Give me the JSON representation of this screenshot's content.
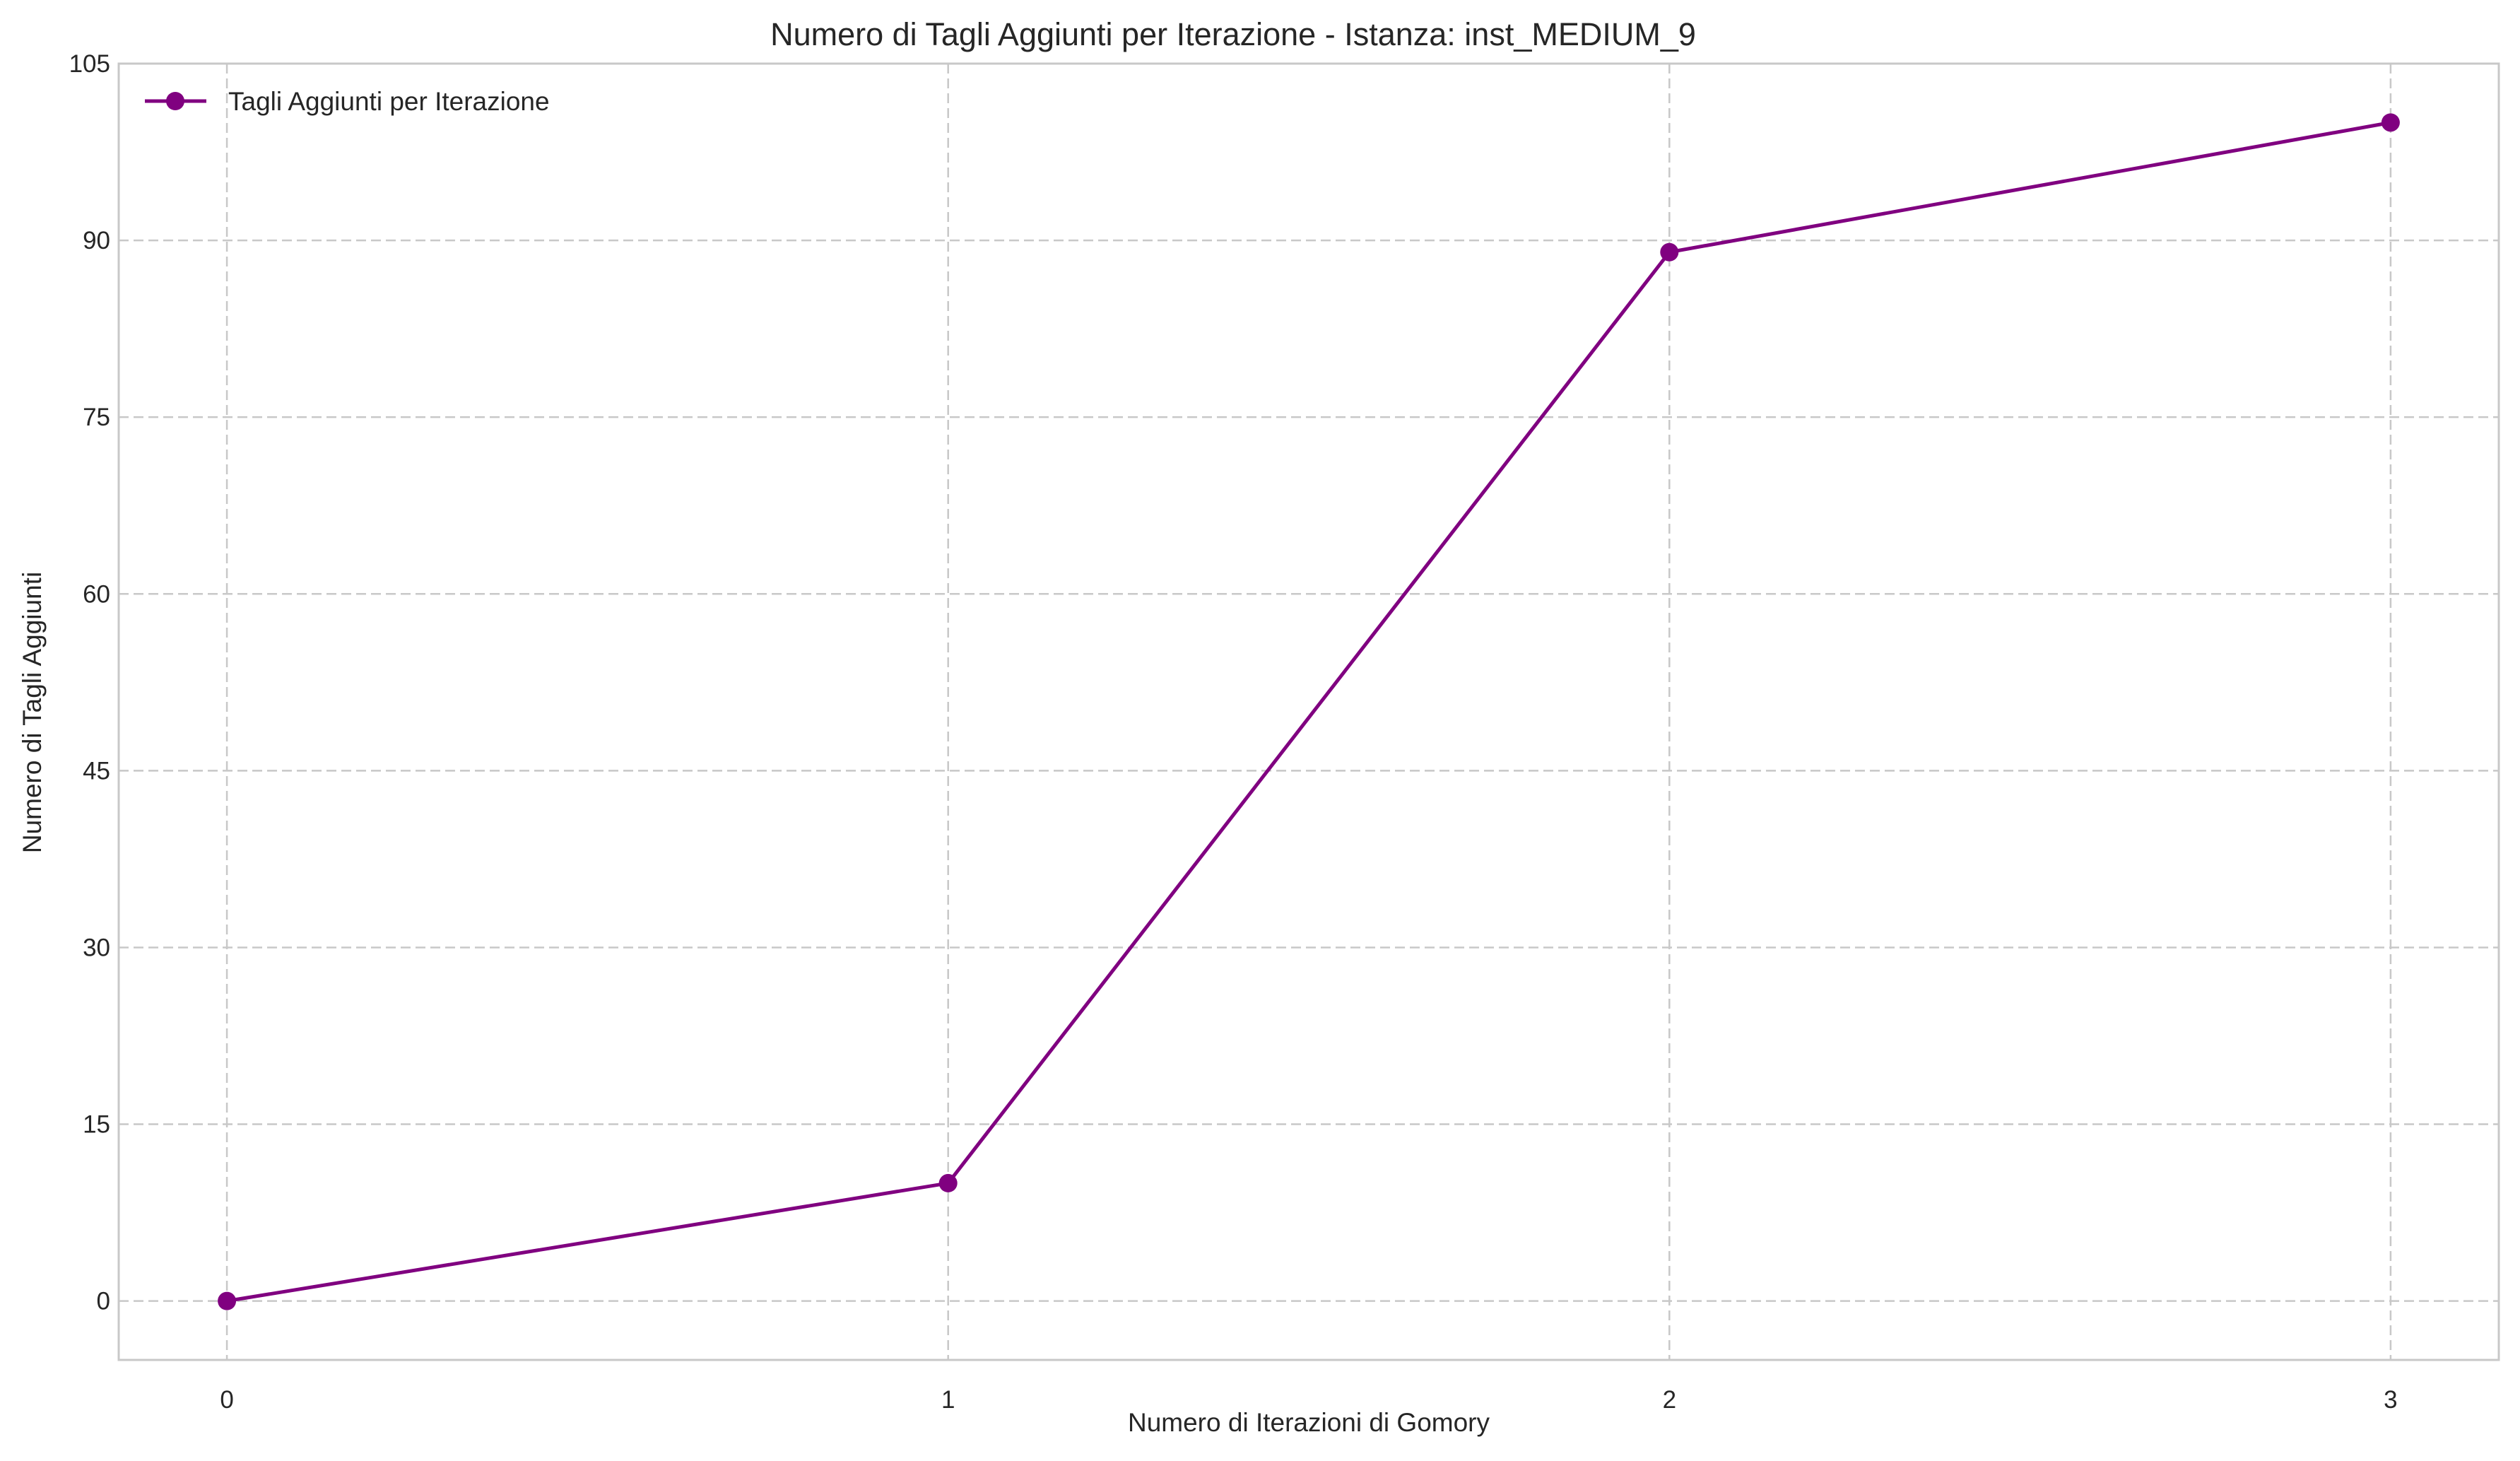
{
  "chart_data": {
    "type": "line",
    "title": "Numero di Tagli Aggiunti per Iterazione - Istanza: inst_MEDIUM_9",
    "xlabel": "Numero di Iterazioni di Gomory",
    "ylabel": "Numero di Tagli Aggiunti",
    "x": [
      0,
      1,
      2,
      3
    ],
    "x_ticks": [
      "0",
      "1",
      "2",
      "3"
    ],
    "xlim": [
      -0.15,
      3.15
    ],
    "y_ticks": [
      "0",
      "15",
      "30",
      "45",
      "60",
      "75",
      "90",
      "105"
    ],
    "ylim": [
      -5,
      105
    ],
    "grid": true,
    "grid_style": "dashed",
    "legend_position": "upper-left",
    "series": [
      {
        "name": "Tagli Aggiunti per Iterazione",
        "values": [
          0,
          10,
          89,
          100
        ],
        "color": "#800080",
        "marker": "circle"
      }
    ],
    "colors": {
      "axes_frame": "#c8c8c8",
      "grid": "#c8c8c8",
      "text": "#262626"
    }
  }
}
